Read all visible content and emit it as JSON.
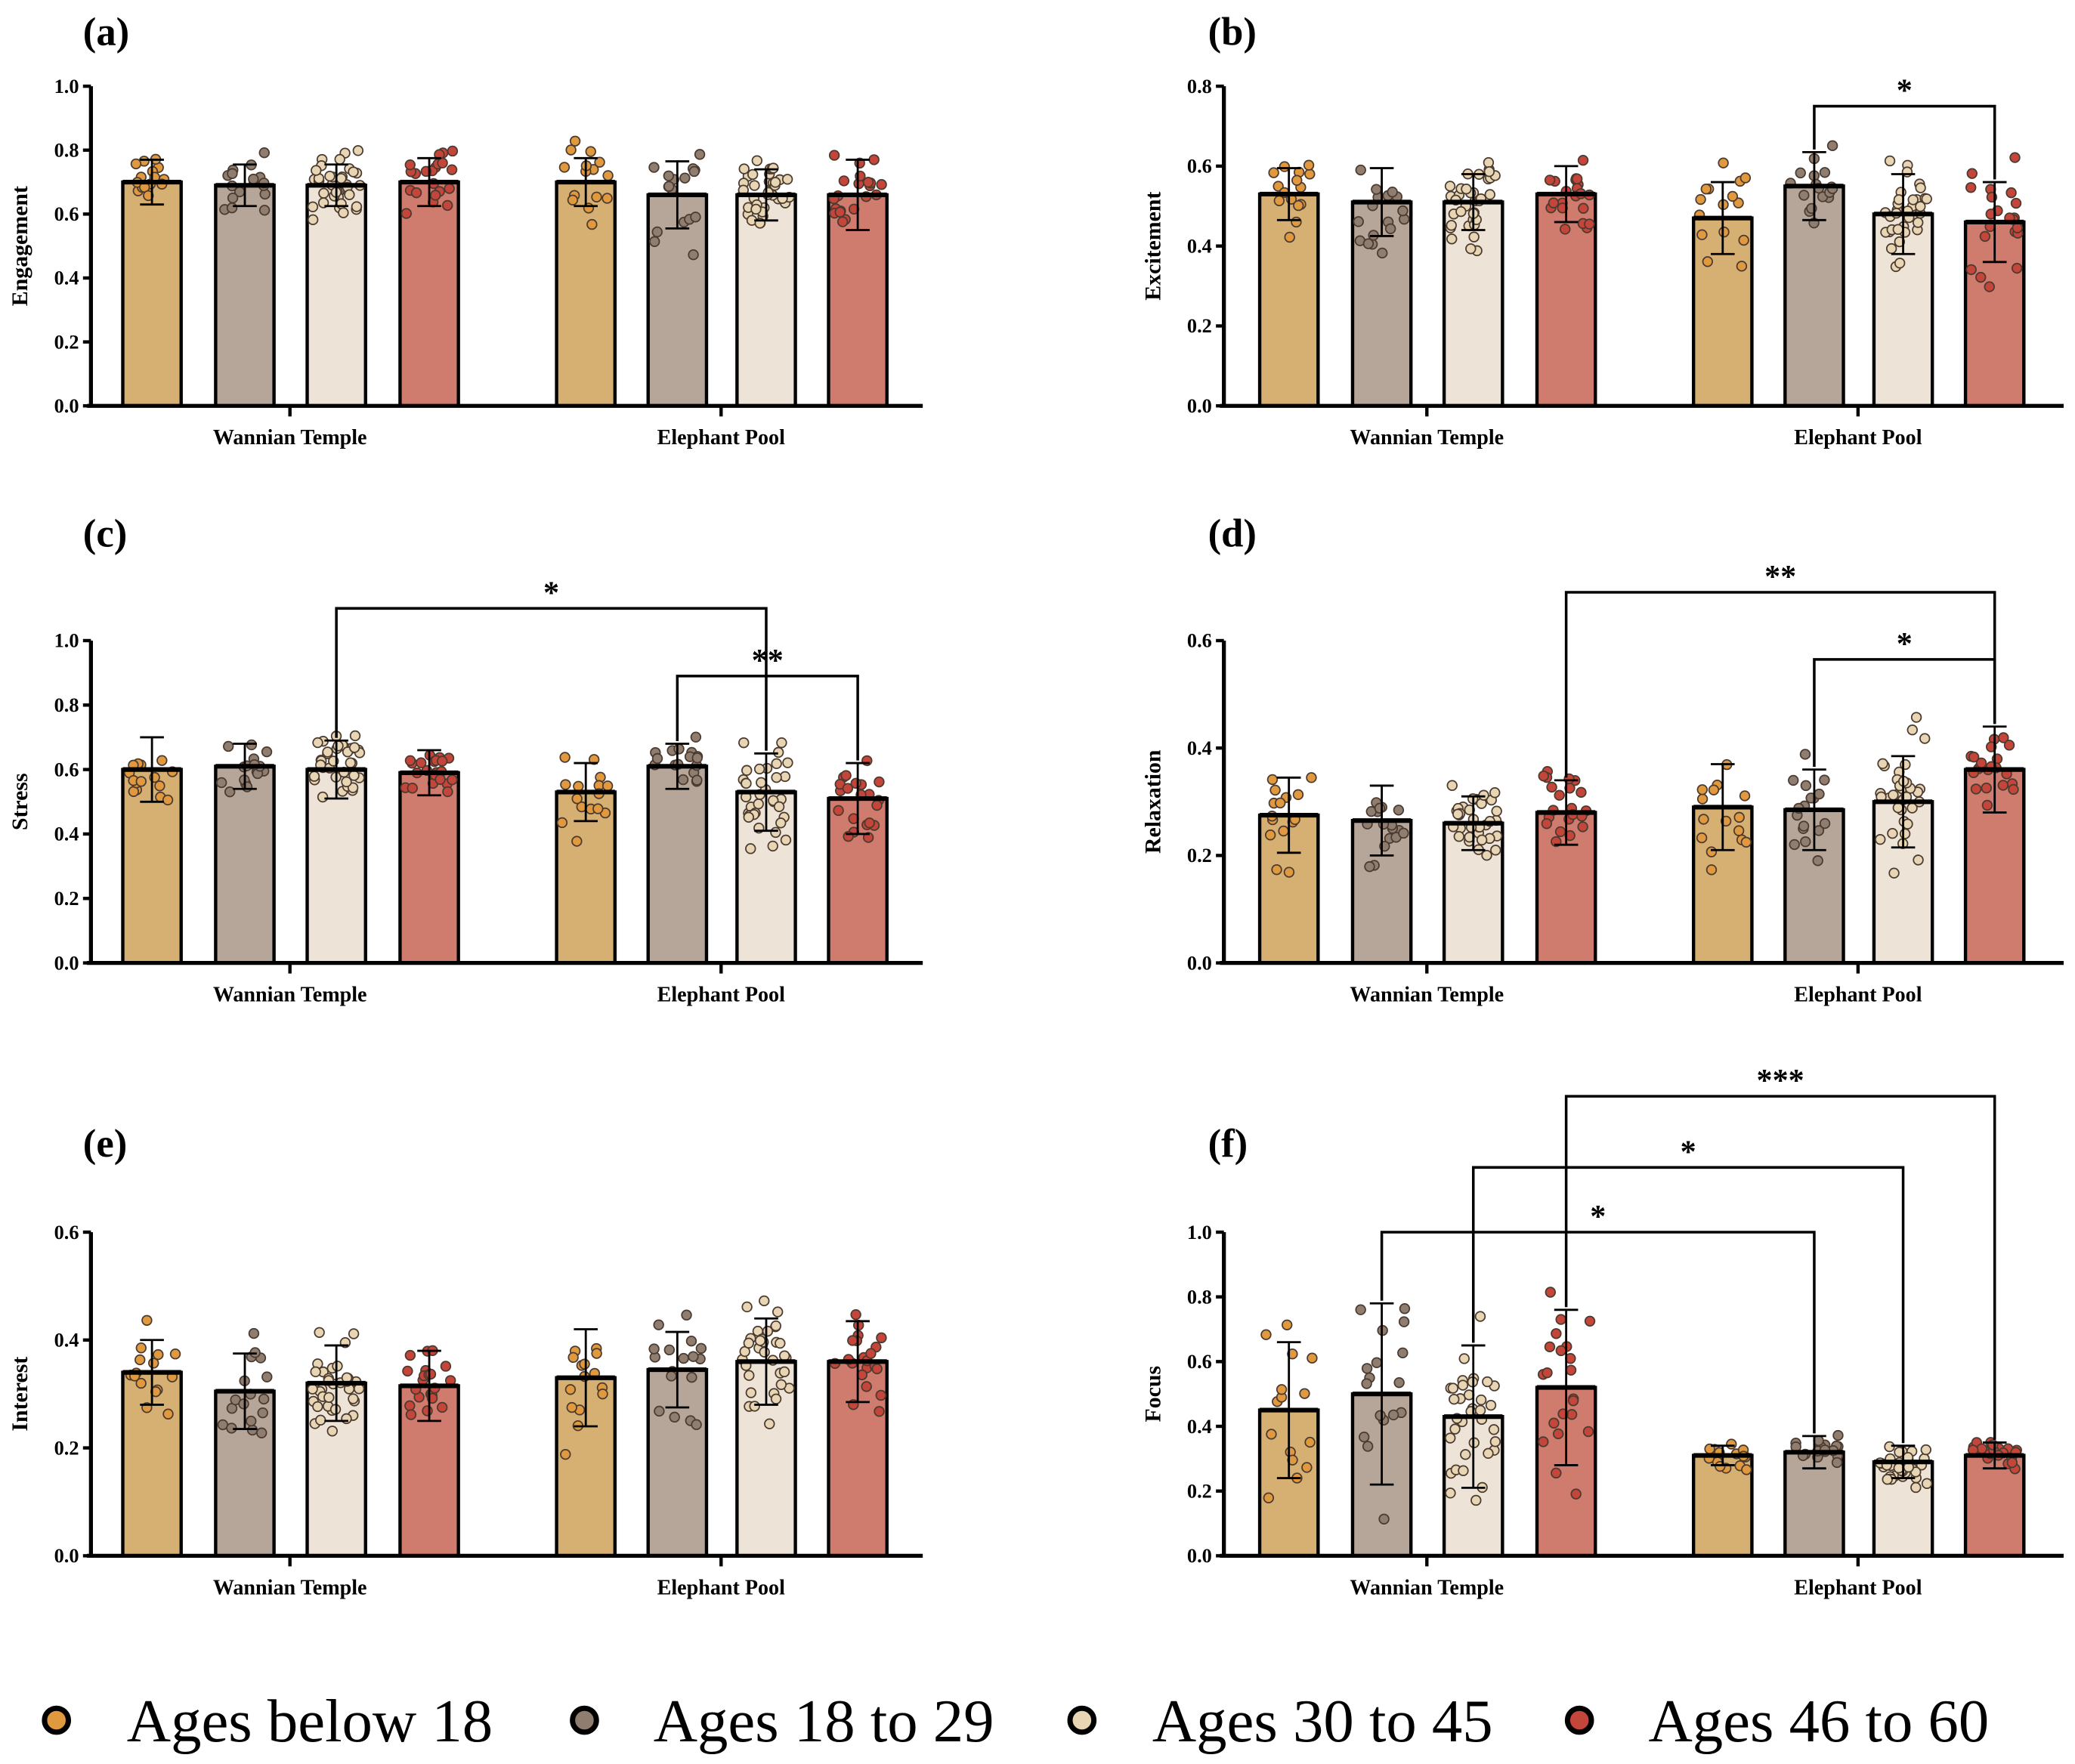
{
  "chart_data": [
    {
      "type": "bar",
      "panel": "(a)",
      "ylabel": "Engagement",
      "ylim": [
        0,
        1.0
      ],
      "yticks": [
        "0.0",
        "0.2",
        "0.4",
        "0.6",
        "0.8",
        "1.0"
      ],
      "categories": [
        "Wannian Temple",
        "Elephant Pool"
      ],
      "series": [
        {
          "name": "Ages below 18",
          "values": [
            0.7,
            0.7
          ],
          "sd": [
            0.07,
            0.075
          ]
        },
        {
          "name": "Ages 18 to 29",
          "values": [
            0.69,
            0.66
          ],
          "sd": [
            0.065,
            0.105
          ]
        },
        {
          "name": "Ages 30 to 45",
          "values": [
            0.69,
            0.66
          ],
          "sd": [
            0.065,
            0.08
          ]
        },
        {
          "name": "Ages 46 to 60",
          "values": [
            0.7,
            0.66
          ],
          "sd": [
            0.075,
            0.11
          ]
        }
      ],
      "significance": []
    },
    {
      "type": "bar",
      "panel": "(b)",
      "ylabel": "Excitement",
      "ylim": [
        0,
        0.8
      ],
      "yticks": [
        "0.0",
        "0.2",
        "0.4",
        "0.6",
        "0.8"
      ],
      "categories": [
        "Wannian Temple",
        "Elephant Pool"
      ],
      "series": [
        {
          "name": "Ages below 18",
          "values": [
            0.53,
            0.47
          ],
          "sd": [
            0.065,
            0.09
          ]
        },
        {
          "name": "Ages 18 to 29",
          "values": [
            0.51,
            0.55
          ],
          "sd": [
            0.085,
            0.085
          ]
        },
        {
          "name": "Ages 30 to 45",
          "values": [
            0.51,
            0.48
          ],
          "sd": [
            0.07,
            0.1
          ]
        },
        {
          "name": "Ages 46 to 60",
          "values": [
            0.53,
            0.46
          ],
          "sd": [
            0.07,
            0.1
          ]
        }
      ],
      "significance": [
        {
          "from": "Elephant Pool / Ages 18 to 29",
          "to": "Elephant Pool / Ages 46 to 60",
          "label": "*"
        }
      ]
    },
    {
      "type": "bar",
      "panel": "(c)",
      "ylabel": "Stress",
      "ylim": [
        0,
        1.0
      ],
      "yticks": [
        "0.0",
        "0.2",
        "0.4",
        "0.6",
        "0.8",
        "1.0"
      ],
      "categories": [
        "Wannian Temple",
        "Elephant Pool"
      ],
      "series": [
        {
          "name": "Ages below 18",
          "values": [
            0.6,
            0.53
          ],
          "sd": [
            0.1,
            0.09
          ]
        },
        {
          "name": "Ages 18 to 29",
          "values": [
            0.61,
            0.61
          ],
          "sd": [
            0.07,
            0.07
          ]
        },
        {
          "name": "Ages 30 to 45",
          "values": [
            0.6,
            0.53
          ],
          "sd": [
            0.09,
            0.12
          ]
        },
        {
          "name": "Ages 46 to 60",
          "values": [
            0.59,
            0.51
          ],
          "sd": [
            0.07,
            0.11
          ]
        }
      ],
      "significance": [
        {
          "from": "Wannian Temple / Ages 30 to 45",
          "to": "Elephant Pool / Ages 30 to 45",
          "label": "*"
        },
        {
          "from": "Elephant Pool / Ages 18 to 29",
          "to": "Elephant Pool / Ages 46 to 60",
          "label": "**"
        }
      ]
    },
    {
      "type": "bar",
      "panel": "(d)",
      "ylabel": "Relaxation",
      "ylim": [
        0,
        0.6
      ],
      "yticks": [
        "0.0",
        "0.2",
        "0.4",
        "0.6"
      ],
      "categories": [
        "Wannian Temple",
        "Elephant Pool"
      ],
      "series": [
        {
          "name": "Ages below 18",
          "values": [
            0.275,
            0.29
          ],
          "sd": [
            0.07,
            0.08
          ]
        },
        {
          "name": "Ages 18 to 29",
          "values": [
            0.265,
            0.285
          ],
          "sd": [
            0.065,
            0.075
          ]
        },
        {
          "name": "Ages 30 to 45",
          "values": [
            0.26,
            0.3
          ],
          "sd": [
            0.05,
            0.085
          ]
        },
        {
          "name": "Ages 46 to 60",
          "values": [
            0.28,
            0.36
          ],
          "sd": [
            0.06,
            0.08
          ]
        }
      ],
      "significance": [
        {
          "from": "Wannian Temple / Ages 46 to 60",
          "to": "Elephant Pool / Ages 46 to 60",
          "label": "**"
        },
        {
          "from": "Elephant Pool / Ages 18 to 29",
          "to": "Elephant Pool / Ages 46 to 60",
          "label": "*"
        }
      ]
    },
    {
      "type": "bar",
      "panel": "(e)",
      "ylabel": "Interest",
      "ylim": [
        0,
        0.6
      ],
      "yticks": [
        "0.0",
        "0.2",
        "0.4",
        "0.6"
      ],
      "categories": [
        "Wannian Temple",
        "Elephant Pool"
      ],
      "series": [
        {
          "name": "Ages below 18",
          "values": [
            0.34,
            0.33
          ],
          "sd": [
            0.06,
            0.09
          ]
        },
        {
          "name": "Ages 18 to 29",
          "values": [
            0.305,
            0.345
          ],
          "sd": [
            0.07,
            0.07
          ]
        },
        {
          "name": "Ages 30 to 45",
          "values": [
            0.32,
            0.36
          ],
          "sd": [
            0.07,
            0.08
          ]
        },
        {
          "name": "Ages 46 to 60",
          "values": [
            0.315,
            0.36
          ],
          "sd": [
            0.065,
            0.075
          ]
        }
      ],
      "significance": []
    },
    {
      "type": "bar",
      "panel": "(f)",
      "ylabel": "Focus",
      "ylim": [
        0,
        1.0
      ],
      "yticks": [
        "0.0",
        "0.2",
        "0.4",
        "0.6",
        "0.8",
        "1.0"
      ],
      "categories": [
        "Wannian Temple",
        "Elephant Pool"
      ],
      "series": [
        {
          "name": "Ages below 18",
          "values": [
            0.45,
            0.31
          ],
          "sd": [
            0.21,
            0.03
          ]
        },
        {
          "name": "Ages 18 to 29",
          "values": [
            0.5,
            0.32
          ],
          "sd": [
            0.28,
            0.05
          ]
        },
        {
          "name": "Ages 30 to 45",
          "values": [
            0.43,
            0.29
          ],
          "sd": [
            0.22,
            0.05
          ]
        },
        {
          "name": "Ages 46 to 60",
          "values": [
            0.52,
            0.31
          ],
          "sd": [
            0.24,
            0.04
          ]
        }
      ],
      "significance": [
        {
          "from": "Wannian Temple / Ages 18 to 29",
          "to": "Elephant Pool / Ages 18 to 29",
          "label": "*"
        },
        {
          "from": "Wannian Temple / Ages 30 to 45",
          "to": "Elephant Pool / Ages 30 to 45",
          "label": "*"
        },
        {
          "from": "Wannian Temple / Ages 46 to 60",
          "to": "Elephant Pool / Ages 46 to 60",
          "label": "***"
        }
      ]
    }
  ],
  "legend": {
    "items": [
      {
        "label": "Ages below 18",
        "bar_color": "#d6b072",
        "dot_color": "#e0993f",
        "n": 15
      },
      {
        "label": "Ages 18 to 29",
        "bar_color": "#b5a699",
        "dot_color": "#8f7e70",
        "n": 17
      },
      {
        "label": "Ages 30 to 45",
        "bar_color": "#ede3d6",
        "dot_color": "#e8d5b3",
        "n": 35
      },
      {
        "label": "Ages 46 to 60",
        "bar_color": "#cf7b6e",
        "dot_color": "#c4453a",
        "n": 21
      }
    ]
  }
}
